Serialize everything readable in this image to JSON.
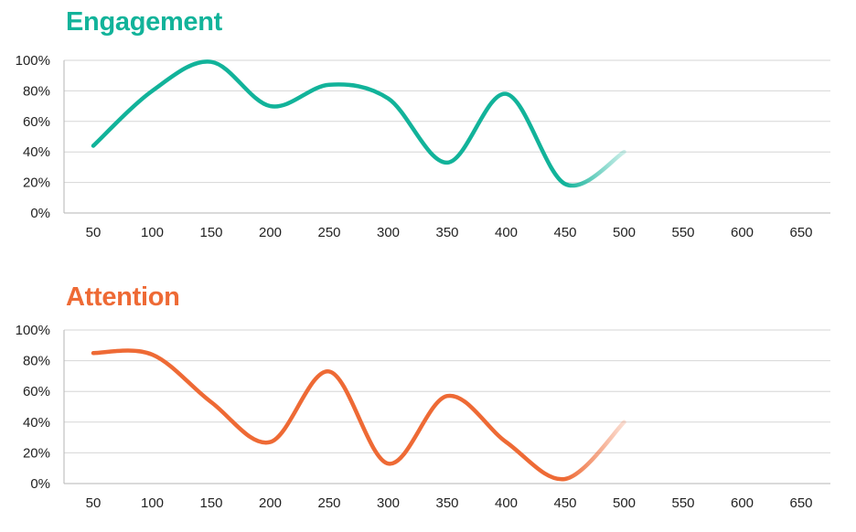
{
  "chart_data": [
    {
      "type": "line",
      "title": "Engagement",
      "color": "#12b39a",
      "x_ticks": [
        "50",
        "100",
        "150",
        "200",
        "250",
        "300",
        "350",
        "400",
        "450",
        "500",
        "550",
        "600",
        "650"
      ],
      "y_ticks": [
        "0%",
        "20%",
        "40%",
        "60%",
        "80%",
        "100%"
      ],
      "xlim": [
        50,
        650
      ],
      "ylim": [
        0,
        100
      ],
      "grid": "horizontal",
      "x": [
        50,
        100,
        150,
        200,
        250,
        300,
        350,
        400,
        450,
        500
      ],
      "y": [
        44,
        80,
        99,
        70,
        84,
        75,
        33,
        78,
        19,
        40
      ]
    },
    {
      "type": "line",
      "title": "Attention",
      "color": "#ee6a35",
      "x_ticks": [
        "50",
        "100",
        "150",
        "200",
        "250",
        "300",
        "350",
        "400",
        "450",
        "500",
        "550",
        "600",
        "650"
      ],
      "y_ticks": [
        "0%",
        "20%",
        "40%",
        "60%",
        "80%",
        "100%"
      ],
      "xlim": [
        50,
        650
      ],
      "ylim": [
        0,
        100
      ],
      "grid": "horizontal",
      "x": [
        50,
        100,
        150,
        200,
        250,
        300,
        350,
        400,
        450,
        500
      ],
      "y": [
        85,
        84,
        53,
        27,
        73,
        13,
        57,
        27,
        3,
        40
      ]
    }
  ]
}
